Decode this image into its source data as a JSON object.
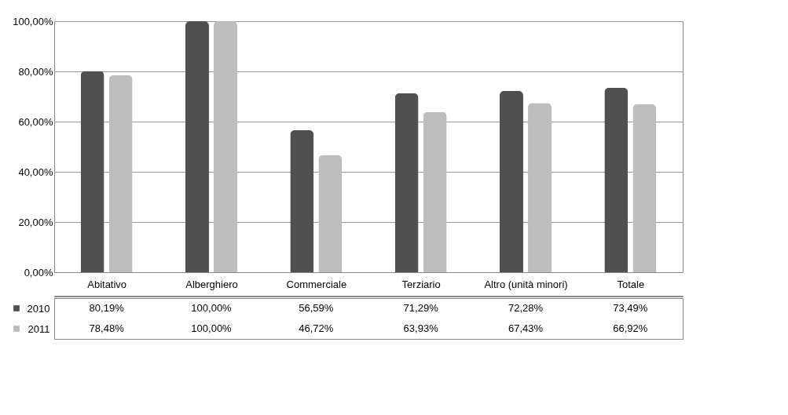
{
  "chart_data": {
    "type": "bar",
    "categories": [
      "Abitativo",
      "Alberghiero",
      "Commerciale",
      "Terziario",
      "Altro (unità minori)",
      "Totale"
    ],
    "series": [
      {
        "name": "2010",
        "color": "#505050",
        "values": [
          80.19,
          100,
          56.59,
          71.29,
          72.28,
          73.49
        ],
        "value_labels": [
          "80,19%",
          "100,00%",
          "56,59%",
          "71,29%",
          "72,28%",
          "73,49%"
        ]
      },
      {
        "name": "2011",
        "color": "#bdbdbd",
        "values": [
          78.48,
          100,
          46.72,
          63.93,
          67.43,
          66.92
        ],
        "value_labels": [
          "78,48%",
          "100,00%",
          "46,72%",
          "63,93%",
          "67,43%",
          "66,92%"
        ]
      }
    ],
    "ylim": [
      0,
      100
    ],
    "yticks": [
      {
        "value": 0,
        "label": "0,00%"
      },
      {
        "value": 20,
        "label": "20,00%"
      },
      {
        "value": 40,
        "label": "40,00%"
      },
      {
        "value": 60,
        "label": "60,00%"
      },
      {
        "value": 80,
        "label": "80,00%"
      },
      {
        "value": 100,
        "label": "100,00%"
      }
    ],
    "grid": "y",
    "legend": "bottom left"
  }
}
